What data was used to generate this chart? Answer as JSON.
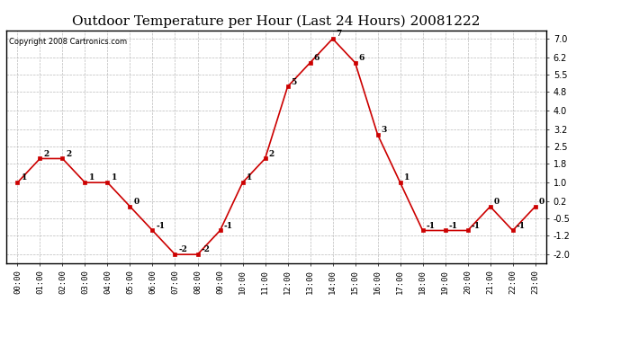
{
  "title": "Outdoor Temperature per Hour (Last 24 Hours) 20081222",
  "copyright_text": "Copyright 2008 Cartronics.com",
  "hours": [
    "00:00",
    "01:00",
    "02:00",
    "03:00",
    "04:00",
    "05:00",
    "06:00",
    "07:00",
    "08:00",
    "09:00",
    "10:00",
    "11:00",
    "12:00",
    "13:00",
    "14:00",
    "15:00",
    "16:00",
    "17:00",
    "18:00",
    "19:00",
    "20:00",
    "21:00",
    "22:00",
    "23:00"
  ],
  "temps": [
    1,
    2,
    2,
    1,
    1,
    0,
    -1,
    -2,
    -2,
    -1,
    1,
    2,
    5,
    6,
    7,
    6,
    3,
    1,
    -1,
    -1,
    -1,
    0,
    -1,
    0
  ],
  "line_color": "#cc0000",
  "marker_color": "#cc0000",
  "grid_color": "#bbbbbb",
  "background_color": "#ffffff",
  "yticks": [
    -2.0,
    -1.2,
    -0.5,
    0.2,
    1.0,
    1.8,
    2.5,
    3.2,
    4.0,
    4.8,
    5.5,
    6.2,
    7.0
  ],
  "ylim": [
    -2.35,
    7.35
  ],
  "title_fontsize": 11,
  "copyright_fontsize": 6,
  "label_fontsize": 6.5,
  "tick_fontsize": 6.5,
  "ytick_fontsize": 7
}
